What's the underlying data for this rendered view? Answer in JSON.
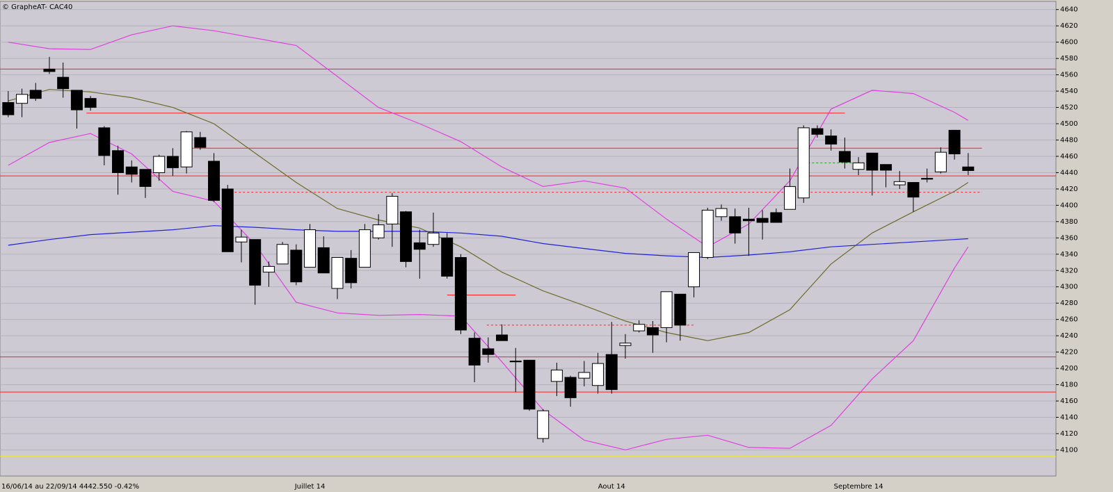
{
  "chart_data": {
    "type": "candlestick",
    "title": "© GrapheAT- CAC40",
    "footer": "16/06/14 au 22/09/14  4442.550  -0.42%",
    "categories": [
      null,
      null,
      null,
      null,
      null,
      null,
      null,
      null,
      null,
      null,
      null,
      null,
      null,
      null,
      null,
      null,
      null,
      null,
      null,
      null,
      null,
      null,
      "Juillet 14",
      null,
      null,
      null,
      null,
      null,
      null,
      null,
      null,
      null,
      null,
      null,
      null,
      null,
      null,
      null,
      null,
      null,
      null,
      null,
      null,
      null,
      "Aout 14",
      null,
      null,
      null,
      null,
      null,
      null,
      null,
      null,
      null,
      null,
      null,
      null,
      null,
      null,
      null,
      null,
      null,
      "Septembre 14",
      null,
      null,
      null,
      null,
      null,
      null,
      null,
      null
    ],
    "open": [
      4526,
      4525,
      4541,
      4567,
      4557,
      4541,
      4531,
      4495,
      4467,
      4447,
      4444,
      4440,
      4460,
      4447,
      4483,
      4454,
      4420,
      4355,
      4358,
      4318,
      4328,
      4345,
      4324,
      4348,
      4298,
      4335,
      4324,
      4360,
      4377,
      4392,
      4354,
      4352,
      4360,
      4336,
      4237,
      4224,
      4241,
      4209,
      4210,
      4114,
      4184,
      4189,
      4188,
      4179,
      4217,
      4228,
      4246,
      4250,
      4250,
      4291,
      4300,
      4336,
      4386,
      4386,
      4383,
      4384,
      4391,
      4395,
      4409,
      4494,
      4485,
      4466,
      4444,
      4464,
      4450,
      4425,
      4428,
      4433,
      4441,
      4492,
      4447
    ],
    "high": [
      4540,
      4543,
      4550,
      4582,
      4575,
      4541,
      4534,
      4497,
      4473,
      4455,
      4444,
      4462,
      4470,
      4491,
      4490,
      4464,
      4425,
      4370,
      4358,
      4331,
      4355,
      4352,
      4377,
      4362,
      4336,
      4345,
      4377,
      4389,
      4415,
      4393,
      4370,
      4391,
      4366,
      4340,
      4244,
      4238,
      4254,
      4225,
      4210,
      4150,
      4207,
      4191,
      4209,
      4219,
      4257,
      4242,
      4259,
      4258,
      4294,
      4291,
      4342,
      4397,
      4401,
      4396,
      4397,
      4394,
      4396,
      4445,
      4498,
      4498,
      4493,
      4483,
      4459,
      4464,
      4450,
      4442,
      4428,
      4445,
      4471,
      4492,
      4464
    ],
    "low": [
      4508,
      4508,
      4528,
      4561,
      4532,
      4494,
      4516,
      4449,
      4413,
      4428,
      4409,
      4430,
      4436,
      4439,
      4468,
      4404,
      4343,
      4330,
      4278,
      4300,
      4328,
      4302,
      4324,
      4317,
      4285,
      4298,
      4324,
      4358,
      4349,
      4324,
      4310,
      4349,
      4310,
      4242,
      4183,
      4207,
      4234,
      4171,
      4148,
      4109,
      4166,
      4153,
      4178,
      4169,
      4169,
      4212,
      4244,
      4219,
      4232,
      4234,
      4287,
      4334,
      4381,
      4353,
      4338,
      4358,
      4379,
      4395,
      4403,
      4483,
      4467,
      4445,
      4437,
      4412,
      4422,
      4420,
      4392,
      4428,
      4439,
      4456,
      4437
    ],
    "close": [
      4511,
      4536,
      4531,
      4564,
      4543,
      4517,
      4520,
      4461,
      4440,
      4438,
      4423,
      4460,
      4446,
      4490,
      4471,
      4406,
      4343,
      4361,
      4302,
      4325,
      4352,
      4306,
      4370,
      4317,
      4336,
      4305,
      4370,
      4376,
      4411,
      4331,
      4346,
      4366,
      4313,
      4247,
      4204,
      4217,
      4234,
      4208,
      4150,
      4148,
      4198,
      4164,
      4195,
      4206,
      4174,
      4231,
      4254,
      4241,
      4294,
      4253,
      4342,
      4394,
      4396,
      4366,
      4381,
      4379,
      4379,
      4423,
      4495,
      4487,
      4475,
      4453,
      4452,
      4443,
      4443,
      4429,
      4410,
      4432,
      4465,
      4463,
      4442.55
    ],
    "up_color": "#ffffff",
    "down_color": "#000000",
    "lines": [
      {
        "color": "#e040e0",
        "x": [
          0,
          3,
          6,
          9,
          12,
          15,
          18,
          21,
          24,
          27,
          30,
          33,
          36,
          39,
          42,
          45,
          48,
          51,
          54,
          57,
          60,
          63,
          66,
          69,
          70
        ],
        "values": [
          4600,
          4592,
          4591,
          4609,
          4620,
          4614,
          4605,
          4596,
          4558,
          4520,
          4500,
          4478,
          4447,
          4423,
          4430,
          4421,
          4383,
          4349,
          4377,
          4430,
          4518,
          4541,
          4537,
          4514,
          4504
        ]
      },
      {
        "color": "#e040e0",
        "x": [
          0,
          3,
          6,
          9,
          12,
          15,
          18,
          21,
          24,
          27,
          30,
          33,
          36,
          39,
          42,
          45,
          48,
          51,
          54,
          57,
          60,
          63,
          66,
          69,
          70
        ],
        "values": [
          4449,
          4477,
          4488,
          4463,
          4417,
          4405,
          4352,
          4281,
          4268,
          4265,
          4266,
          4264,
          4208,
          4149,
          4112,
          4100,
          4113,
          4118,
          4103,
          4102,
          4130,
          4187,
          4234,
          4323,
          4349
        ]
      },
      {
        "color": "#6b6b2a",
        "x": [
          0,
          3,
          6,
          9,
          12,
          15,
          18,
          21,
          24,
          27,
          30,
          33,
          36,
          39,
          42,
          45,
          48,
          51,
          54,
          57,
          60,
          63,
          66,
          69,
          70
        ],
        "values": [
          4528,
          4542,
          4539,
          4532,
          4520,
          4500,
          4464,
          4428,
          4396,
          4382,
          4372,
          4349,
          4318,
          4295,
          4277,
          4258,
          4244,
          4234,
          4244,
          4272,
          4328,
          4366,
          4392,
          4417,
          4428
        ]
      },
      {
        "color": "#2020e0",
        "x": [
          0,
          3,
          6,
          9,
          12,
          15,
          18,
          21,
          24,
          27,
          30,
          33,
          36,
          39,
          42,
          45,
          48,
          51,
          54,
          57,
          60,
          63,
          66,
          69,
          70
        ],
        "values": [
          4351,
          4358,
          4364,
          4367,
          4370,
          4375,
          4373,
          4370,
          4368,
          4368,
          4368,
          4366,
          4362,
          4353,
          4347,
          4341,
          4338,
          4336,
          4339,
          4343,
          4349,
          4352,
          4355,
          4358,
          4359
        ]
      }
    ],
    "levels": [
      {
        "value": 4567,
        "color": "#ff2020",
        "dashed": false,
        "x": [
          -0.6,
          76.4
        ]
      },
      {
        "value": 4513,
        "color": "#ff2020",
        "dashed": false,
        "x": [
          5.7,
          61.0
        ]
      },
      {
        "value": 4470,
        "color": "#ff2020",
        "dashed": false,
        "x": [
          13.0,
          71.0
        ]
      },
      {
        "value": 4436,
        "color": "#ff2020",
        "dashed": false,
        "x": [
          -0.6,
          76.4
        ]
      },
      {
        "value": 4416,
        "color": "#ff2020",
        "dashed": true,
        "x": [
          15.9,
          71.0
        ]
      },
      {
        "value": 4452,
        "color": "#20a020",
        "dashed": true,
        "x": [
          57.7,
          62.9
        ]
      },
      {
        "value": 4290,
        "color": "#ff2020",
        "dashed": false,
        "x": [
          32.0,
          37.0
        ]
      },
      {
        "value": 4253,
        "color": "#ff2020",
        "dashed": true,
        "x": [
          34.9,
          50.0
        ]
      },
      {
        "value": 4214,
        "color": "#ff2020",
        "dashed": false,
        "x": [
          -0.6,
          76.4
        ]
      },
      {
        "value": 4171,
        "color": "#ff2020",
        "dashed": false,
        "x": [
          -0.6,
          76.4
        ]
      },
      {
        "value": 4092,
        "color": "#f0f000",
        "dashed": false,
        "x": [
          -0.6,
          76.4
        ]
      }
    ],
    "xlim": [
      -0.6,
      76.4
    ],
    "ylim": [
      4068,
      4650
    ],
    "yticks": [
      4100,
      4120,
      4140,
      4160,
      4180,
      4200,
      4220,
      4240,
      4260,
      4280,
      4300,
      4320,
      4340,
      4360,
      4380,
      4400,
      4420,
      4440,
      4460,
      4480,
      4500,
      4520,
      4540,
      4560,
      4580,
      4600,
      4620,
      4640
    ],
    "grid": true
  }
}
